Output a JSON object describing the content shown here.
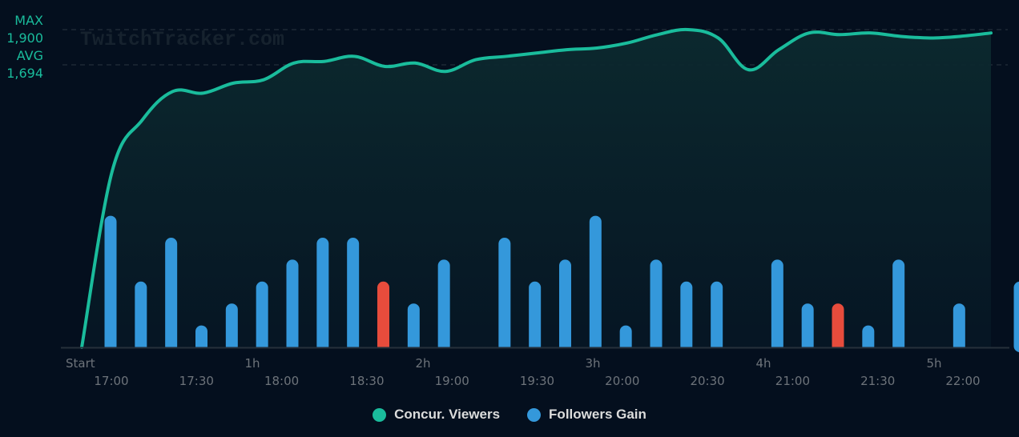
{
  "watermark": "TwitchTracker.com",
  "chart_data": {
    "type": "line+bar",
    "series": [
      {
        "name": "Concur. Viewers",
        "type": "area-line",
        "color": "#1abc9c",
        "values": [
          0,
          1050,
          1360,
          1530,
          1520,
          1580,
          1600,
          1700,
          1710,
          1740,
          1680,
          1700,
          1650,
          1720,
          1740,
          1760,
          1780,
          1790,
          1820,
          1870,
          1900,
          1850,
          1660,
          1780,
          1880,
          1870,
          1880,
          1860,
          1850,
          1860,
          1880
        ]
      },
      {
        "name": "Followers Gain",
        "type": "bar",
        "color": "#3498db",
        "negative_color": "#e74c3c",
        "values": [
          6,
          3,
          5,
          1,
          2,
          3,
          4,
          5,
          5,
          -3,
          2,
          4,
          0,
          5,
          3,
          4,
          6,
          1,
          4,
          3,
          3,
          0,
          4,
          2,
          -2,
          1,
          4,
          0,
          2,
          0,
          3
        ]
      }
    ],
    "y_annotations": [
      {
        "label": "MAX",
        "value_label": "1,900",
        "value": 1900
      },
      {
        "label": "AVG",
        "value_label": "1,694",
        "value": 1694
      }
    ],
    "x_ticks_elapsed": [
      "Start",
      "1h",
      "2h",
      "3h",
      "4h",
      "5h"
    ],
    "x_ticks_clock": [
      "17:00",
      "17:30",
      "18:00",
      "18:30",
      "19:00",
      "19:30",
      "20:00",
      "20:30",
      "21:00",
      "21:30",
      "22:00"
    ],
    "ylim": [
      0,
      2050
    ],
    "legend": [
      "Concur. Viewers",
      "Followers Gain"
    ],
    "legend_position": "bottom",
    "grid": false
  }
}
